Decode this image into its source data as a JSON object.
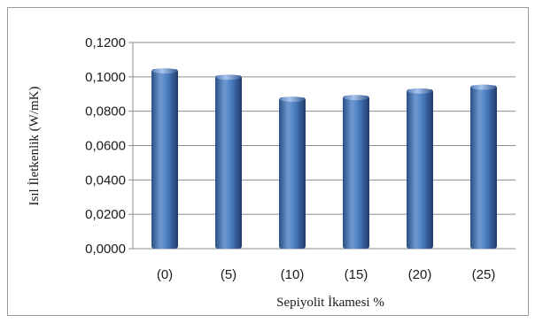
{
  "chart_data": {
    "type": "bar",
    "categories": [
      "(0)",
      "(5)",
      "(10)",
      "(15)",
      "(20)",
      "(25)"
    ],
    "values": [
      0.1045,
      0.1008,
      0.088,
      0.089,
      0.0928,
      0.095
    ],
    "xlabel": "Sepiyolit İkamesi %",
    "ylabel": "Isıl İletkenlik (W/mK)",
    "ylim": [
      0,
      0.12
    ],
    "yticks": [
      "0,0000",
      "0,0200",
      "0,0400",
      "0,0600",
      "0,0800",
      "0,1000",
      "0,1200"
    ],
    "grid": true,
    "legend": false,
    "bar_color": "#4a7cc0"
  }
}
